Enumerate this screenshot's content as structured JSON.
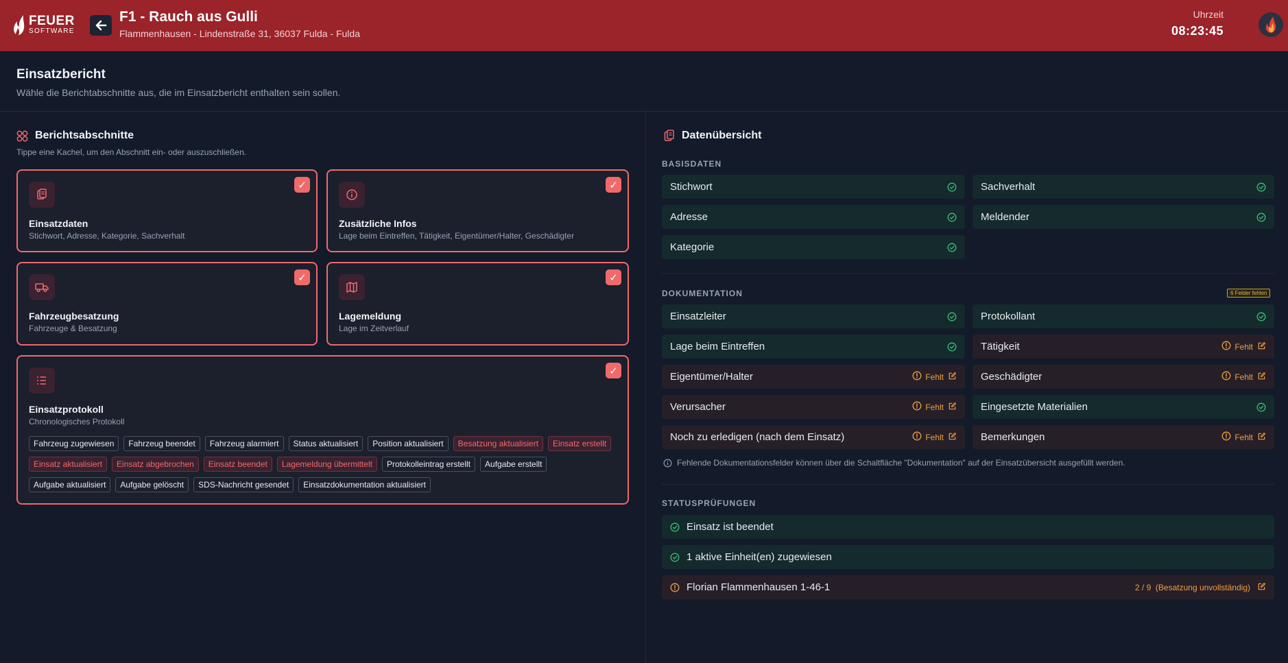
{
  "header": {
    "logo_main": "FEUER",
    "logo_sub": "SOFTWARE",
    "title": "F1 - Rauch aus Gulli",
    "address": "Flammenhausen - Lindenstraße 31, 36037 Fulda - Fulda",
    "time_label": "Uhrzeit",
    "time_value": "08:23:45"
  },
  "page": {
    "title": "Einsatzbericht",
    "subtitle": "Wähle die Berichtabschnitte aus, die im Einsatzbericht enthalten sein sollen."
  },
  "sections": {
    "title": "Berichtsabschnitte",
    "hint": "Tippe eine Kachel, um den Abschnitt ein- oder auszuschließen.",
    "check": "✓",
    "tiles": [
      {
        "title": "Einsatzdaten",
        "desc": "Stichwort, Adresse, Kategorie, Sachverhalt",
        "icon": "clipboard-icon",
        "selected": true
      },
      {
        "title": "Zusätzliche Infos",
        "desc": "Lage beim Eintreffen, Tätigkeit, Eigentümer/Halter, Geschädigter",
        "icon": "info-icon",
        "selected": true
      },
      {
        "title": "Fahrzeugbesatzung",
        "desc": "Fahrzeuge & Besatzung",
        "icon": "truck-icon",
        "selected": true
      },
      {
        "title": "Lagemeldung",
        "desc": "Lage im Zeitverlauf",
        "icon": "map-icon",
        "selected": true
      },
      {
        "title": "Einsatzprotokoll",
        "desc": "Chronologisches Protokoll",
        "icon": "list-icon",
        "selected": true
      }
    ],
    "protocol_chips": [
      {
        "label": "Fahrzeug zugewiesen",
        "highlight": false
      },
      {
        "label": "Fahrzeug beendet",
        "highlight": false
      },
      {
        "label": "Fahrzeug alarmiert",
        "highlight": false
      },
      {
        "label": "Status aktualisiert",
        "highlight": false
      },
      {
        "label": "Position aktualisiert",
        "highlight": false
      },
      {
        "label": "Besatzung aktualisiert",
        "highlight": true
      },
      {
        "label": "Einsatz erstellt",
        "highlight": true
      },
      {
        "label": "Einsatz aktualisiert",
        "highlight": true
      },
      {
        "label": "Einsatz abgebrochen",
        "highlight": true
      },
      {
        "label": "Einsatz beendet",
        "highlight": true
      },
      {
        "label": "Lagemeldung übermittelt",
        "highlight": true
      },
      {
        "label": "Protokolleintrag erstellt",
        "highlight": false
      },
      {
        "label": "Aufgabe erstellt",
        "highlight": false
      },
      {
        "label": "Aufgabe aktualisiert",
        "highlight": false
      },
      {
        "label": "Aufgabe gelöscht",
        "highlight": false
      },
      {
        "label": "SDS-Nachricht gesendet",
        "highlight": false
      },
      {
        "label": "Einsatzdokumentation aktualisiert",
        "highlight": false
      }
    ]
  },
  "overview": {
    "title": "Datenübersicht",
    "basisdaten_label": "BASISDATEN",
    "basisdaten": [
      {
        "label": "Stichwort",
        "ok": true
      },
      {
        "label": "Sachverhalt",
        "ok": true
      },
      {
        "label": "Adresse",
        "ok": true
      },
      {
        "label": "Meldender",
        "ok": true
      },
      {
        "label": "Kategorie",
        "ok": true
      }
    ],
    "doku_label": "DOKUMENTATION",
    "doku_badge": "6 Felder fehlen",
    "missing_text": "Fehlt",
    "doku": [
      {
        "label": "Einsatzleiter",
        "ok": true
      },
      {
        "label": "Protokollant",
        "ok": true
      },
      {
        "label": "Lage beim Eintreffen",
        "ok": true
      },
      {
        "label": "Tätigkeit",
        "ok": false
      },
      {
        "label": "Eigentümer/Halter",
        "ok": false
      },
      {
        "label": "Geschädigter",
        "ok": false
      },
      {
        "label": "Verursacher",
        "ok": false
      },
      {
        "label": "Eingesetzte Materialien",
        "ok": true
      },
      {
        "label": "Noch zu erledigen (nach dem Einsatz)",
        "ok": false
      },
      {
        "label": "Bemerkungen",
        "ok": false
      }
    ],
    "doku_note": "Fehlende Dokumentationsfelder können über die Schaltfläche \"Dokumentation\" auf der Einsatzübersicht ausgefüllt werden.",
    "status_label": "STATUSPRÜFUNGEN",
    "status": [
      {
        "label": "Einsatz ist beendet",
        "ok": true,
        "detail": ""
      },
      {
        "label": "1 aktive Einheit(en) zugewiesen",
        "ok": true,
        "detail": ""
      },
      {
        "label": "Florian Flammenhausen 1-46-1",
        "ok": false,
        "detail": "2 / 9  (Besatzung unvollständig)"
      }
    ]
  },
  "colors": {
    "header_bg": "#9b232a",
    "page_bg": "#131a2a",
    "accent": "#f06a6a",
    "ok_green": "#3bbf7a",
    "warn_orange": "#f0a040"
  }
}
